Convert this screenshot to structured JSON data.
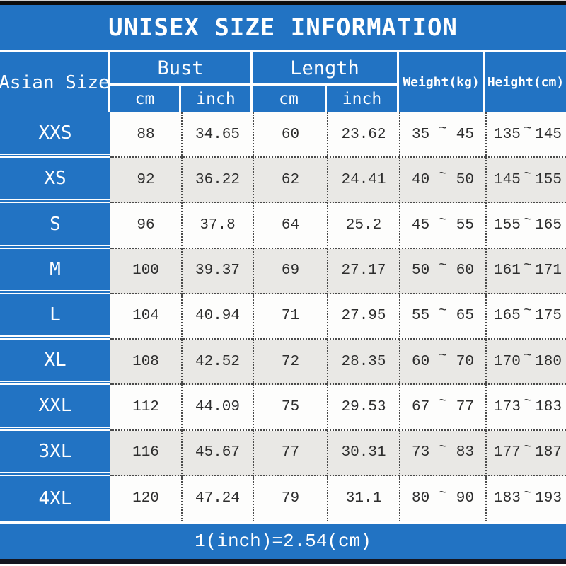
{
  "title": "UNISEX SIZE INFORMATION",
  "tilde": "~",
  "table": {
    "header": {
      "asian_size": "Asian Size",
      "bust": "Bust",
      "length": "Length",
      "weight": "Weight(kg)",
      "height": "Height(cm)",
      "units": [
        "cm",
        "inch",
        "cm",
        "inch"
      ]
    },
    "rows": [
      {
        "size": "XXS",
        "bust_cm": "88",
        "bust_inch": "34.65",
        "length_cm": "60",
        "length_inch": "23.62",
        "weight_min": "35",
        "weight_max": "45",
        "height_min": "135",
        "height_max": "145"
      },
      {
        "size": "XS",
        "bust_cm": "92",
        "bust_inch": "36.22",
        "length_cm": "62",
        "length_inch": "24.41",
        "weight_min": "40",
        "weight_max": "50",
        "height_min": "145",
        "height_max": "155"
      },
      {
        "size": "S",
        "bust_cm": "96",
        "bust_inch": "37.8",
        "length_cm": "64",
        "length_inch": "25.2",
        "weight_min": "45",
        "weight_max": "55",
        "height_min": "155",
        "height_max": "165"
      },
      {
        "size": "M",
        "bust_cm": "100",
        "bust_inch": "39.37",
        "length_cm": "69",
        "length_inch": "27.17",
        "weight_min": "50",
        "weight_max": "60",
        "height_min": "161",
        "height_max": "171"
      },
      {
        "size": "L",
        "bust_cm": "104",
        "bust_inch": "40.94",
        "length_cm": "71",
        "length_inch": "27.95",
        "weight_min": "55",
        "weight_max": "65",
        "height_min": "165",
        "height_max": "175"
      },
      {
        "size": "XL",
        "bust_cm": "108",
        "bust_inch": "42.52",
        "length_cm": "72",
        "length_inch": "28.35",
        "weight_min": "60",
        "weight_max": "70",
        "height_min": "170",
        "height_max": "180"
      },
      {
        "size": "XXL",
        "bust_cm": "112",
        "bust_inch": "44.09",
        "length_cm": "75",
        "length_inch": "29.53",
        "weight_min": "67",
        "weight_max": "77",
        "height_min": "173",
        "height_max": "183"
      },
      {
        "size": "3XL",
        "bust_cm": "116",
        "bust_inch": "45.67",
        "length_cm": "77",
        "length_inch": "30.31",
        "weight_min": "73",
        "weight_max": "83",
        "height_min": "177",
        "height_max": "187"
      },
      {
        "size": "4XL",
        "bust_cm": "120",
        "bust_inch": "47.24",
        "length_cm": "79",
        "length_inch": "31.1",
        "weight_min": "80",
        "weight_max": "90",
        "height_min": "183",
        "height_max": "193"
      }
    ]
  },
  "footer": {
    "note": "1(inch)=2.54(cm)"
  },
  "colors": {
    "blue": "#2273c3",
    "row_white": "#fdfdfc",
    "row_alt": "#e9e8e5",
    "dotted_line": "#4a4a4a",
    "text": "#2d2d2d",
    "top_bar": "#0d0d0d",
    "bottom_bar": "#15151f"
  },
  "chart_data": {
    "type": "table",
    "title": "UNISEX SIZE INFORMATION",
    "columns": [
      "Asian Size",
      "Bust (cm)",
      "Bust (inch)",
      "Length (cm)",
      "Length (inch)",
      "Weight (kg)",
      "Height (cm)"
    ],
    "rows": [
      [
        "XXS",
        88,
        34.65,
        60,
        23.62,
        "35~45",
        "135~145"
      ],
      [
        "XS",
        92,
        36.22,
        62,
        24.41,
        "40~50",
        "145~155"
      ],
      [
        "S",
        96,
        37.8,
        64,
        25.2,
        "45~55",
        "155~165"
      ],
      [
        "M",
        100,
        39.37,
        69,
        27.17,
        "50~60",
        "161~171"
      ],
      [
        "L",
        104,
        40.94,
        71,
        27.95,
        "55~65",
        "165~175"
      ],
      [
        "XL",
        108,
        42.52,
        72,
        28.35,
        "60~70",
        "170~180"
      ],
      [
        "XXL",
        112,
        44.09,
        75,
        29.53,
        "67~77",
        "173~183"
      ],
      [
        "3XL",
        116,
        45.67,
        77,
        30.31,
        "73~83",
        "177~187"
      ],
      [
        "4XL",
        120,
        47.24,
        79,
        31.1,
        "80~90",
        "183~193"
      ]
    ],
    "footnote": "1(inch)=2.54(cm)"
  }
}
